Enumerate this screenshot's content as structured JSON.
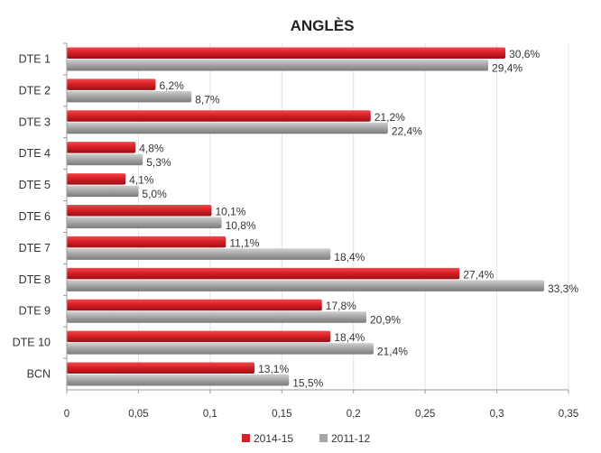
{
  "chart_data": {
    "type": "bar",
    "orientation": "horizontal",
    "title": "ANGLÈS",
    "categories": [
      "DTE 1",
      "DTE 2",
      "DTE 3",
      "DTE 4",
      "DTE 5",
      "DTE 6",
      "DTE 7",
      "DTE 8",
      "DTE 9",
      "DTE 10",
      "BCN"
    ],
    "series": [
      {
        "name": "2014-15",
        "color": "#d91f26",
        "values": [
          0.306,
          0.062,
          0.212,
          0.048,
          0.041,
          0.101,
          0.111,
          0.274,
          0.178,
          0.184,
          0.131
        ],
        "labels": [
          "30,6%",
          "6,2%",
          "21,2%",
          "4,8%",
          "4,1%",
          "10,1%",
          "11,1%",
          "27,4%",
          "17,8%",
          "18,4%",
          "13,1%"
        ]
      },
      {
        "name": "2011-12",
        "color": "#a6a6a6",
        "values": [
          0.294,
          0.087,
          0.224,
          0.053,
          0.05,
          0.108,
          0.184,
          0.333,
          0.209,
          0.214,
          0.155
        ],
        "labels": [
          "29,4%",
          "8,7%",
          "22,4%",
          "5,3%",
          "5,0%",
          "10,8%",
          "18,4%",
          "33,3%",
          "20,9%",
          "21,4%",
          "15,5%"
        ]
      }
    ],
    "xlim": [
      0,
      0.35
    ],
    "xticks": [
      0,
      0.05,
      0.1,
      0.15,
      0.2,
      0.25,
      0.3,
      0.35
    ],
    "xtick_labels": [
      "0",
      "0,05",
      "0,1",
      "0,15",
      "0,2",
      "0,25",
      "0,3",
      "0,35"
    ],
    "grid": "vertical",
    "legend": "bottom"
  }
}
